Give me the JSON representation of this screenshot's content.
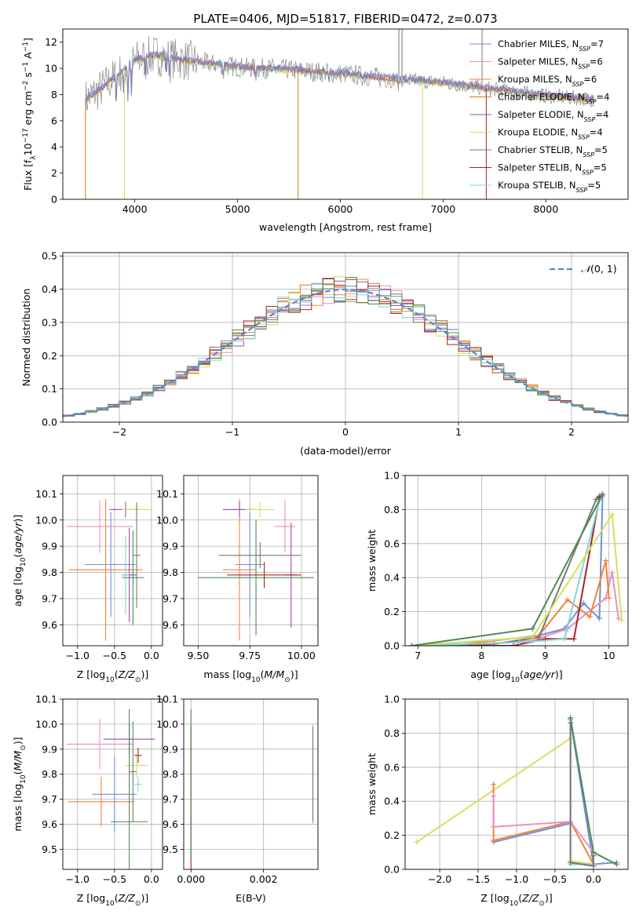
{
  "page_title": "PLATE=0406, MJD=51817, FIBERID=0472, z=0.073",
  "colors": {
    "chabrier_miles": "#6f8fd6",
    "salpeter_miles": "#e88fc0",
    "kroupa_miles": "#f0843a",
    "chabrier_elodie": "#d67a1e",
    "salpeter_elodie": "#9b4fa6",
    "kroupa_elodie": "#d6e05a",
    "chabrier_stelib": "#777777",
    "salpeter_stelib": "#a82424",
    "kroupa_stelib": "#7fd6de",
    "gaussian": "#5b86d6",
    "green_extra": "#4f8a55"
  },
  "chart_data": [
    {
      "id": "spectrum",
      "type": "line",
      "title": "PLATE=0406, MJD=51817, FIBERID=0472, z=0.073",
      "xlabel": "wavelength [Angstrom, rest frame]",
      "ylabel": "Flux [f_λ 10^-17 erg cm^-2 s^-1 A^-1]",
      "xlim": [
        3300,
        8800
      ],
      "ylim": [
        0,
        13
      ],
      "xticks": [
        4000,
        5000,
        6000,
        7000,
        8000
      ],
      "yticks": [
        0,
        2,
        4,
        6,
        8,
        10,
        12
      ],
      "legend_position": "top-right",
      "legend": [
        "Chabrier MILES, N_SSP=7",
        "Salpeter MILES, N_SSP=6",
        "Kroupa MILES, N_SSP=6",
        "Chabrier ELODIE, N_SSP=4",
        "Salpeter ELODIE, N_SSP=4",
        "Kroupa ELODIE, N_SSP=4",
        "Chabrier STELIB, N_SSP=5",
        "Salpeter STELIB, N_SSP=5",
        "Kroupa STELIB, N_SSP=5"
      ],
      "continuum": {
        "x": [
          3520,
          3700,
          3850,
          4000,
          4200,
          4500,
          5000,
          5500,
          6000,
          6500,
          7000,
          7500,
          8000,
          8500
        ],
        "y": [
          7.6,
          8.6,
          9.6,
          10.6,
          11.0,
          10.6,
          10.1,
          9.9,
          9.6,
          9.2,
          8.9,
          8.4,
          7.9,
          7.6
        ]
      }
    },
    {
      "id": "residuals",
      "type": "bar",
      "xlabel": "(data-model)/error",
      "ylabel": "Normed distribution",
      "xlim": [
        -2.5,
        2.5
      ],
      "ylim": [
        0,
        0.51
      ],
      "xticks": [
        -2,
        -1,
        0,
        1,
        2
      ],
      "yticks": [
        0.0,
        0.1,
        0.2,
        0.3,
        0.4,
        0.5
      ],
      "legend": [
        "N(0,1)"
      ],
      "legend_position": "top-right",
      "bin_width": 0.1
    },
    {
      "id": "age_vs_z",
      "type": "scatter",
      "xlabel": "Z [log10(Z/Z⊙)]",
      "ylabel": "age [log10(age/yr)]",
      "xlim": [
        -1.2,
        0.15
      ],
      "ylim": [
        9.52,
        10.17
      ],
      "xticks": [
        -1.0,
        -0.5,
        0.0
      ],
      "yticks": [
        9.6,
        9.7,
        9.8,
        9.9,
        10.0,
        10.1
      ],
      "points": [
        {
          "x": -0.62,
          "y": 9.81,
          "xerr": 0.5,
          "yerr": 0.27,
          "c": "kroupa_miles"
        },
        {
          "x": -0.55,
          "y": 9.83,
          "xerr": 0.35,
          "yerr": 0.2,
          "c": "chabrier_miles"
        },
        {
          "x": -0.7,
          "y": 9.975,
          "xerr": 0.45,
          "yerr": 0.1,
          "c": "salpeter_miles"
        },
        {
          "x": -0.35,
          "y": 10.04,
          "xerr": 0.22,
          "yerr": 0.03,
          "c": "salpeter_elodie"
        },
        {
          "x": -0.2,
          "y": 10.04,
          "xerr": 0.2,
          "yerr": 0.03,
          "c": "kroupa_elodie"
        },
        {
          "x": -0.3,
          "y": 9.79,
          "xerr": 0.1,
          "yerr": 0.18,
          "c": "salpeter_elodie"
        },
        {
          "x": -0.25,
          "y": 9.78,
          "xerr": 0.15,
          "yerr": 0.18,
          "c": "green_extra"
        },
        {
          "x": -0.2,
          "y": 9.865,
          "xerr": 0.05,
          "yerr": 0.2,
          "c": "chabrier_stelib"
        },
        {
          "x": -0.35,
          "y": 9.79,
          "xerr": 0.05,
          "yerr": 0.15,
          "c": "kroupa_stelib"
        }
      ]
    },
    {
      "id": "age_vs_mass",
      "type": "scatter",
      "xlabel": "mass [log10(M/M⊙)]",
      "ylabel": "",
      "xlim": [
        9.43,
        10.08
      ],
      "ylim": [
        9.52,
        10.17
      ],
      "xticks": [
        9.5,
        9.75,
        10.0
      ],
      "yticks": [
        9.6,
        9.7,
        9.8,
        9.9,
        10.0,
        10.1
      ],
      "points": [
        {
          "x": 9.7,
          "y": 9.81,
          "xerr": 0.08,
          "yerr": 0.27,
          "c": "kroupa_miles"
        },
        {
          "x": 9.75,
          "y": 9.83,
          "xerr": 0.07,
          "yerr": 0.2,
          "c": "chabrier_miles"
        },
        {
          "x": 9.92,
          "y": 9.975,
          "xerr": 0.05,
          "yerr": 0.1,
          "c": "salpeter_miles"
        },
        {
          "x": 9.7,
          "y": 10.04,
          "xerr": 0.08,
          "yerr": 0.03,
          "c": "salpeter_elodie"
        },
        {
          "x": 9.8,
          "y": 10.04,
          "xerr": 0.07,
          "yerr": 0.03,
          "c": "kroupa_elodie"
        },
        {
          "x": 9.95,
          "y": 9.79,
          "xerr": 0.03,
          "yerr": 0.2,
          "c": "salpeter_elodie"
        },
        {
          "x": 9.78,
          "y": 9.78,
          "xerr": 0.28,
          "yerr": 0.22,
          "c": "green_extra"
        },
        {
          "x": 9.8,
          "y": 9.865,
          "xerr": 0.2,
          "yerr": 0.05,
          "c": "chabrier_stelib"
        },
        {
          "x": 9.82,
          "y": 9.79,
          "xerr": 0.18,
          "yerr": 0.05,
          "c": "salpeter_stelib"
        }
      ]
    },
    {
      "id": "weight_vs_age",
      "type": "line",
      "xlabel": "age [log10(age/yr)]",
      "ylabel": "mass weight",
      "xlim": [
        6.8,
        10.3
      ],
      "ylim": [
        0,
        1.0
      ],
      "xticks": [
        7,
        8,
        9,
        10
      ],
      "yticks": [
        0.0,
        0.2,
        0.4,
        0.6,
        0.8,
        1.0
      ],
      "series": [
        {
          "c": "chabrier_miles",
          "x": [
            6.9,
            8.8,
            9.3,
            9.6,
            9.85,
            9.9
          ],
          "y": [
            0.0,
            0.05,
            0.1,
            0.25,
            0.16,
            0.88
          ]
        },
        {
          "c": "salpeter_miles",
          "x": [
            7.6,
            8.8,
            9.35,
            9.95,
            10.05,
            10.15
          ],
          "y": [
            0.0,
            0.03,
            0.1,
            0.28,
            0.43,
            0.16
          ]
        },
        {
          "c": "kroupa_miles",
          "x": [
            7.5,
            8.9,
            9.35,
            9.7,
            9.95,
            10.0
          ],
          "y": [
            0.0,
            0.06,
            0.27,
            0.17,
            0.5,
            0.28
          ]
        },
        {
          "c": "chabrier_stelib",
          "x": [
            6.9,
            8.2,
            8.9,
            9.8,
            9.85
          ],
          "y": [
            0.0,
            0.01,
            0.05,
            0.86,
            0.88
          ]
        },
        {
          "c": "salpeter_stelib",
          "x": [
            7.8,
            8.5,
            9.0,
            9.45,
            9.85,
            9.88
          ],
          "y": [
            0.0,
            0.0,
            0.04,
            0.04,
            0.87,
            0.88
          ]
        },
        {
          "c": "kroupa_stelib",
          "x": [
            6.9,
            8.6,
            9.3,
            9.85,
            9.9
          ],
          "y": [
            0.0,
            0.02,
            0.04,
            0.85,
            0.89
          ]
        },
        {
          "c": "kroupa_elodie",
          "x": [
            6.9,
            8.8,
            10.05,
            10.2
          ],
          "y": [
            0.0,
            0.05,
            0.77,
            0.15
          ]
        },
        {
          "c": "green_extra",
          "x": [
            6.9,
            8.8,
            9.9
          ],
          "y": [
            0.0,
            0.1,
            0.89
          ]
        }
      ]
    },
    {
      "id": "mass_vs_z",
      "type": "scatter",
      "xlabel": "Z [log10(Z/Z⊙)]",
      "ylabel": "mass [log10(M/M⊙)]",
      "xlim": [
        -1.2,
        0.15
      ],
      "ylim": [
        9.42,
        10.1
      ],
      "xticks": [
        -1.0,
        -0.5,
        0.0
      ],
      "yticks": [
        9.5,
        9.6,
        9.7,
        9.8,
        9.9,
        10.0,
        10.1
      ],
      "points": [
        {
          "x": -0.68,
          "y": 9.69,
          "xerr": 0.45,
          "yerr": 0.1,
          "c": "kroupa_miles"
        },
        {
          "x": -0.5,
          "y": 9.72,
          "xerr": 0.3,
          "yerr": 0.15,
          "c": "chabrier_miles"
        },
        {
          "x": -0.7,
          "y": 9.92,
          "xerr": 0.45,
          "yerr": 0.1,
          "c": "salpeter_miles"
        },
        {
          "x": -0.3,
          "y": 9.94,
          "xerr": 0.35,
          "yerr": 0.06,
          "c": "salpeter_elodie"
        },
        {
          "x": -0.2,
          "y": 9.835,
          "xerr": 0.15,
          "yerr": 0.05,
          "c": "kroupa_elodie"
        },
        {
          "x": -0.3,
          "y": 9.61,
          "xerr": 0.25,
          "yerr": 0.45,
          "c": "green_extra"
        },
        {
          "x": -0.25,
          "y": 9.81,
          "xerr": 0.05,
          "yerr": 0.2,
          "c": "chabrier_stelib"
        },
        {
          "x": -0.18,
          "y": 9.875,
          "xerr": 0.05,
          "yerr": 0.03,
          "c": "salpeter_stelib"
        },
        {
          "x": -0.18,
          "y": 9.76,
          "xerr": 0.05,
          "yerr": 0.03,
          "c": "kroupa_stelib"
        }
      ]
    },
    {
      "id": "mass_vs_ebv",
      "type": "scatter",
      "xlabel": "E(B-V)",
      "ylabel": "",
      "xlim": [
        -0.0002,
        0.0035
      ],
      "ylim": [
        9.42,
        10.1
      ],
      "xticks": [
        0.0,
        0.002
      ],
      "xtick_labels": [
        "0.000",
        "0.002"
      ],
      "yticks": [
        9.5,
        9.6,
        9.7,
        9.8,
        9.9,
        10.0,
        10.1
      ],
      "points": [
        {
          "x": 0.0,
          "y": 9.69,
          "xerr": 0,
          "yerr": 0.3,
          "c": "salpeter_stelib"
        },
        {
          "x": 0.0,
          "y": 9.76,
          "xerr": 0,
          "yerr": 0.3,
          "c": "green_extra"
        },
        {
          "x": 0.0,
          "y": 9.6,
          "xerr": 0,
          "yerr": 0.02,
          "c": "salpeter_elodie"
        },
        {
          "x": 0.00336,
          "y": 9.8,
          "xerr": 0,
          "yerr": 0.2,
          "c": "kroupa_stelib"
        },
        {
          "x": 0.00336,
          "y": 9.8,
          "xerr": 0,
          "yerr": 0.19,
          "c": "chabrier_stelib"
        }
      ]
    },
    {
      "id": "weight_vs_z",
      "type": "line",
      "xlabel": "Z [log10(Z/Z⊙)]",
      "ylabel": "mass weight",
      "xlim": [
        -2.45,
        0.45
      ],
      "ylim": [
        0,
        1.0
      ],
      "xticks": [
        -2.0,
        -1.5,
        -1.0,
        -0.5,
        0.0
      ],
      "yticks": [
        0.0,
        0.2,
        0.4,
        0.6,
        0.8,
        1.0
      ],
      "series": [
        {
          "c": "kroupa_elodie",
          "x": [
            -2.3,
            -0.3,
            -0.3,
            0.0
          ],
          "y": [
            0.16,
            0.77,
            0.05,
            0.03
          ]
        },
        {
          "c": "chabrier_miles",
          "x": [
            -1.3,
            -0.3,
            -0.3,
            0.0,
            0.3
          ],
          "y": [
            0.16,
            0.27,
            0.88,
            0.03,
            0.04
          ]
        },
        {
          "c": "kroupa_miles",
          "x": [
            -1.3,
            -1.3,
            -0.3,
            0.0
          ],
          "y": [
            0.5,
            0.17,
            0.28,
            0.03
          ]
        },
        {
          "c": "salpeter_miles",
          "x": [
            -1.3,
            -1.3,
            -0.3,
            0.0
          ],
          "y": [
            0.43,
            0.25,
            0.28,
            0.1
          ]
        },
        {
          "c": "kroupa_stelib",
          "x": [
            -0.3,
            -0.3,
            0.0
          ],
          "y": [
            0.89,
            0.03,
            0.03
          ]
        },
        {
          "c": "chabrier_stelib",
          "x": [
            -0.3,
            -0.3,
            0.0,
            0.0
          ],
          "y": [
            0.86,
            0.04,
            0.02,
            0.08
          ]
        },
        {
          "c": "green_extra",
          "x": [
            -0.3,
            0.0,
            0.3
          ],
          "y": [
            0.89,
            0.1,
            0.03
          ]
        }
      ]
    }
  ]
}
